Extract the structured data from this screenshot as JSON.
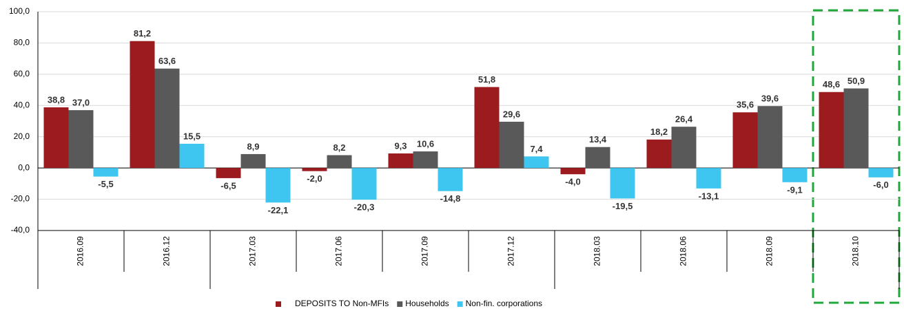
{
  "chart_data": {
    "type": "bar",
    "categories": [
      "2016.09",
      "2016.12",
      "2017.03",
      "2017.06",
      "2017.09",
      "2017.12",
      "2018.03",
      "2018.06",
      "2018.09",
      "2018.10"
    ],
    "series": [
      {
        "name": "DEPOSITS TO Non-MFIs",
        "color": "#9b1b1f",
        "values": [
          38.8,
          81.2,
          -6.5,
          -2.0,
          9.3,
          51.8,
          -4.0,
          18.2,
          35.6,
          48.6
        ],
        "value_labels": [
          "38,8",
          "81,2",
          "-6,5",
          "-2,0",
          "9,3",
          "51,8",
          "-4,0",
          "18,2",
          "35,6",
          "48,6"
        ]
      },
      {
        "name": "Households",
        "color": "#595959",
        "values": [
          37.0,
          63.6,
          8.9,
          8.2,
          10.6,
          29.6,
          13.4,
          26.4,
          39.6,
          50.9
        ],
        "value_labels": [
          "37,0",
          "63,6",
          "8,9",
          "8,2",
          "10,6",
          "29,6",
          "13,4",
          "26,4",
          "39,6",
          "50,9"
        ]
      },
      {
        "name": "Non-fin. corporations",
        "color": "#3ec6f0",
        "values": [
          -5.5,
          15.5,
          -22.1,
          -20.3,
          -14.8,
          7.4,
          -19.5,
          -13.1,
          -9.1,
          -6.0
        ],
        "value_labels": [
          "-5,5",
          "15,5",
          "-22,1",
          "-20,3",
          "-14,8",
          "7,4",
          "-19,5",
          "-13,1",
          "-9,1",
          "-6,0"
        ]
      }
    ],
    "ylim": [
      -40,
      100
    ],
    "yticks": [
      {
        "value": -40,
        "label": "-40,0"
      },
      {
        "value": -20,
        "label": "-20,0"
      },
      {
        "value": 0,
        "label": "0,0"
      },
      {
        "value": 20,
        "label": "20,0"
      },
      {
        "value": 40,
        "label": "40,0"
      },
      {
        "value": 60,
        "label": "60,0"
      },
      {
        "value": 80,
        "label": "80,0"
      },
      {
        "value": 100,
        "label": "100,0"
      }
    ],
    "grid": true,
    "legend": "bottom"
  }
}
